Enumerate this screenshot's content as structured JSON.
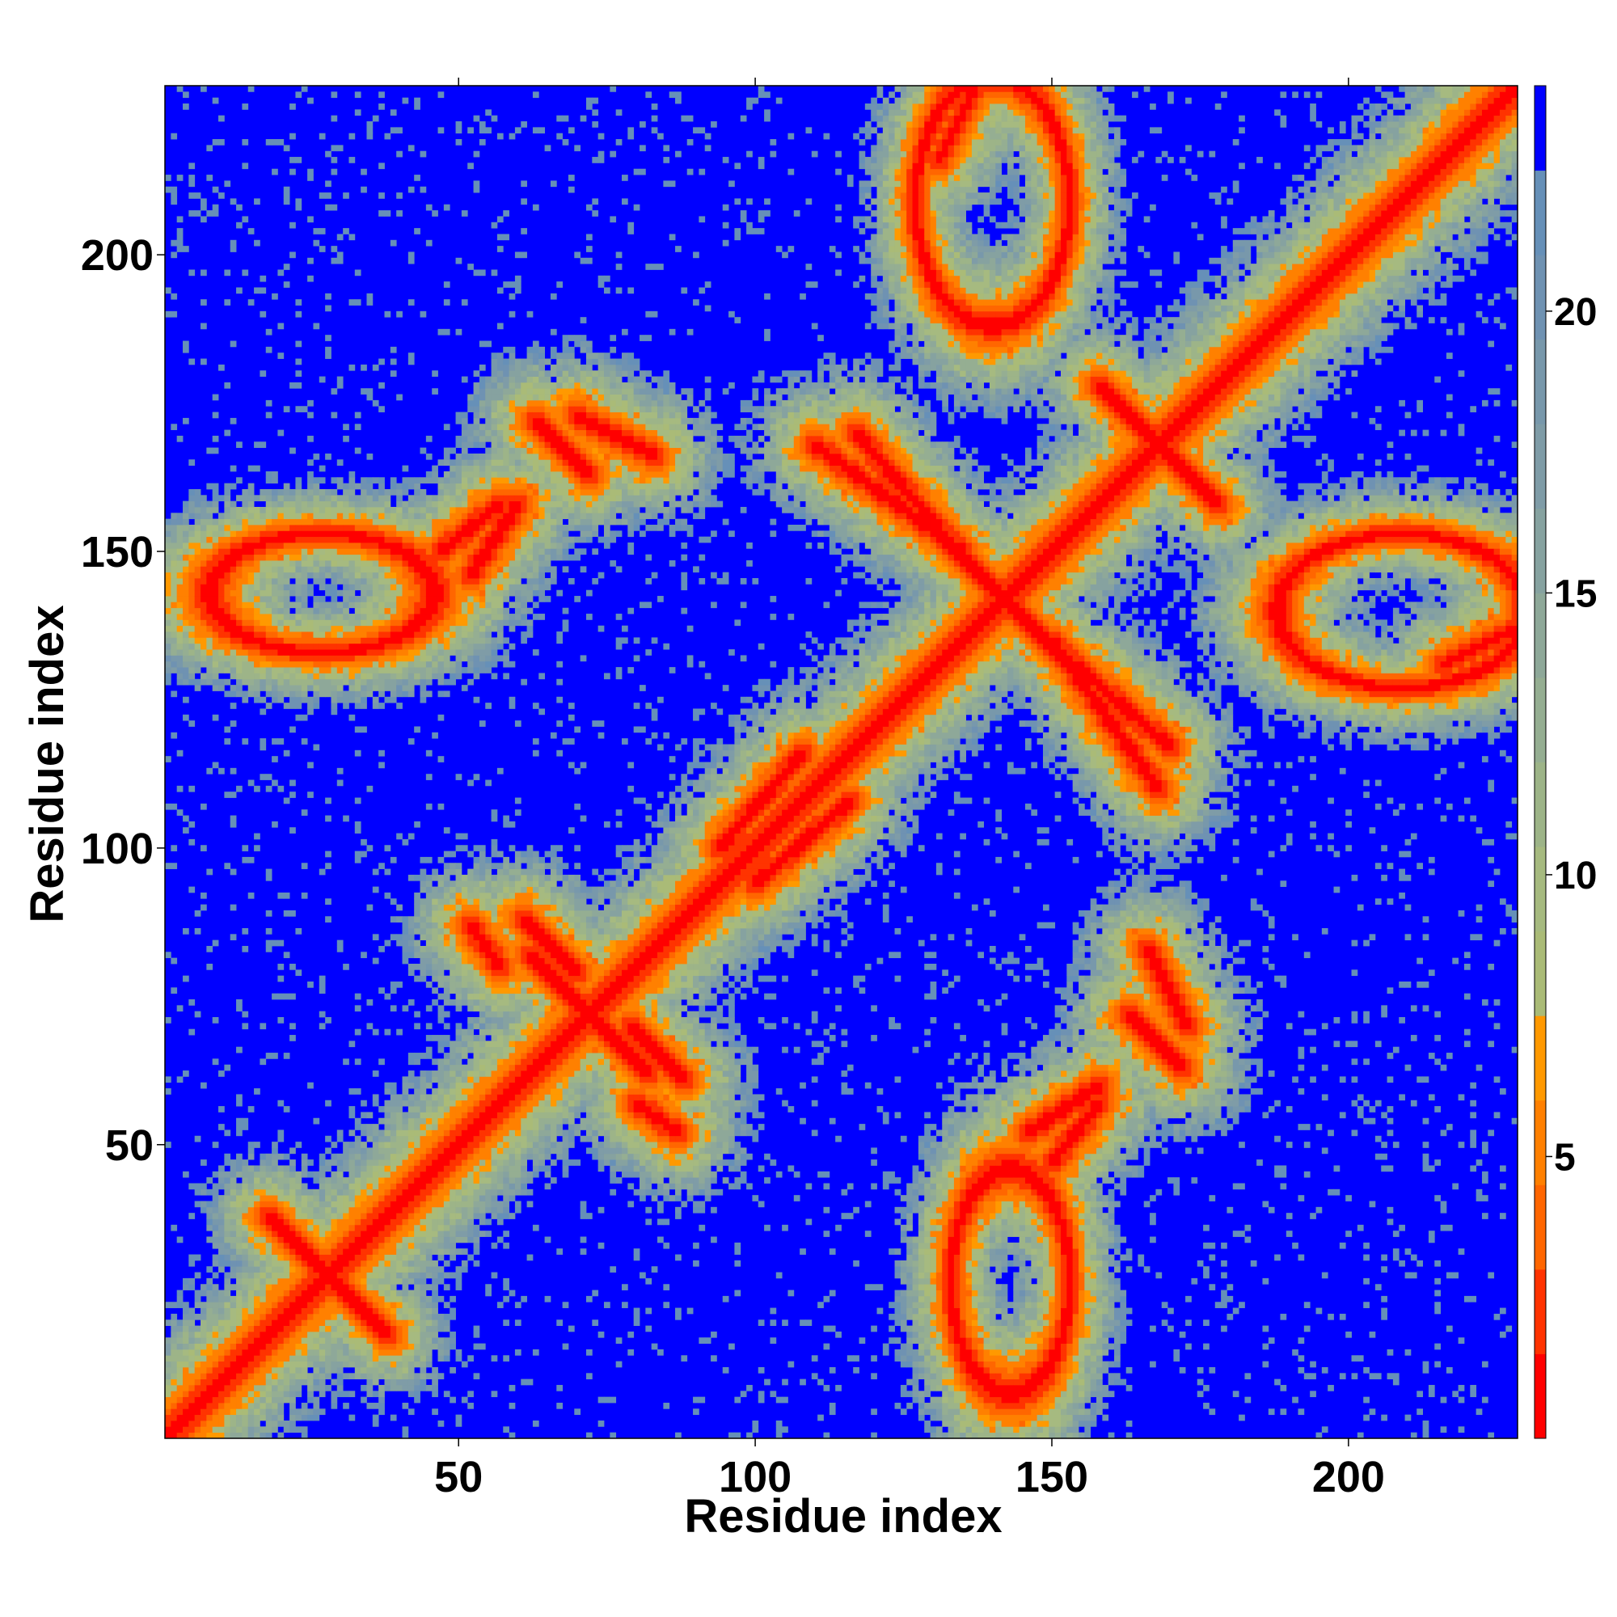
{
  "chart_data": {
    "type": "heatmap",
    "title": "",
    "xlabel": "Residue index",
    "ylabel": "Residue index",
    "n_residues": 228,
    "xlim": [
      1,
      228
    ],
    "ylim": [
      1,
      228
    ],
    "xticks": [
      50,
      100,
      150,
      200
    ],
    "yticks": [
      50,
      100,
      150,
      200
    ],
    "colorbar": {
      "ticks": [
        5,
        10,
        15,
        20
      ],
      "range": [
        0,
        24
      ],
      "bins": [
        {
          "upper": 1.5,
          "color": "#ff0000"
        },
        {
          "upper": 3,
          "color": "#ff3300"
        },
        {
          "upper": 4.5,
          "color": "#ff6600"
        },
        {
          "upper": 6,
          "color": "#ff8000"
        },
        {
          "upper": 7.5,
          "color": "#ff9900"
        },
        {
          "upper": 9,
          "color": "#aabb77"
        },
        {
          "upper": 10.5,
          "color": "#a6ba80"
        },
        {
          "upper": 12,
          "color": "#9db488"
        },
        {
          "upper": 13.5,
          "color": "#95ae92"
        },
        {
          "upper": 15,
          "color": "#8ea899"
        },
        {
          "upper": 16.5,
          "color": "#86a2a0"
        },
        {
          "upper": 18,
          "color": "#7f9ca7"
        },
        {
          "upper": 19.5,
          "color": "#7898ab"
        },
        {
          "upper": 21,
          "color": "#6f92b2"
        },
        {
          "upper": 22.5,
          "color": "#6690b8"
        },
        {
          "upper": 24,
          "color": "#0000ff"
        }
      ]
    },
    "contact_features": [
      {
        "kind": "diagonal",
        "note": "self contacts along i=j"
      },
      {
        "kind": "cross",
        "x": 28,
        "y": 28
      },
      {
        "kind": "cross",
        "x": 72,
        "y": 72
      },
      {
        "kind": "cross",
        "x": 142,
        "y": 142
      },
      {
        "kind": "cross",
        "x": 168,
        "y": 168
      },
      {
        "kind": "band",
        "x": [
          61,
          70
        ],
        "y": [
          88,
          79
        ]
      },
      {
        "kind": "band",
        "x": [
          80,
          87
        ],
        "y": [
          57,
          52
        ]
      },
      {
        "kind": "band",
        "x": [
          70,
          83
        ],
        "y": [
          173,
          166
        ]
      },
      {
        "kind": "band",
        "x": [
          47,
          57
        ],
        "y": [
          150,
          158
        ]
      },
      {
        "kind": "band",
        "x": [
          146,
          158
        ],
        "y": [
          52,
          60
        ]
      },
      {
        "kind": "band",
        "x": [
          110,
          135
        ],
        "y": [
          168,
          150
        ]
      },
      {
        "kind": "band",
        "x": [
          148,
          170
        ],
        "y": [
          136,
          117
        ]
      },
      {
        "kind": "band",
        "x": [
          131,
          137
        ],
        "y": [
          216,
          228
        ]
      },
      {
        "kind": "band",
        "x": [
          163,
          172
        ],
        "y": [
          72,
          63
        ]
      },
      {
        "kind": "band",
        "x": [
          94,
          108
        ],
        "y": [
          100,
          116
        ]
      },
      {
        "kind": "ring",
        "x": 140,
        "y": 209,
        "rx": 13,
        "ry": 21
      },
      {
        "kind": "ring",
        "x": 213,
        "y": 143,
        "rx": 21,
        "ry": 13
      },
      {
        "kind": "ring",
        "x": 27,
        "y": 143,
        "rx": 19,
        "ry": 10
      },
      {
        "kind": "ring",
        "x": 142,
        "y": 27,
        "rx": 10,
        "ry": 19
      }
    ]
  }
}
